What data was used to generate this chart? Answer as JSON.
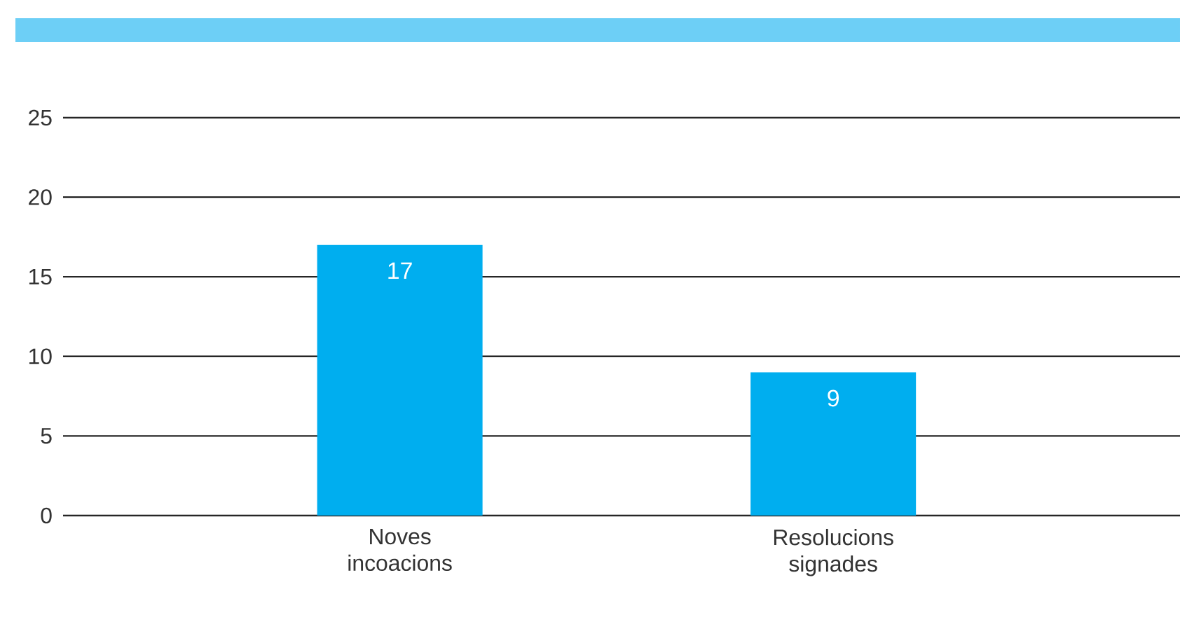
{
  "chart_data": {
    "type": "bar",
    "categories": [
      "Noves incoacions",
      "Resolucions signades"
    ],
    "values": [
      17,
      9
    ],
    "color": "#00aeef",
    "ylim": [
      0,
      25
    ],
    "yticks": [
      0,
      5,
      10,
      15,
      20,
      25
    ],
    "grid": "y",
    "data_labels": true
  }
}
